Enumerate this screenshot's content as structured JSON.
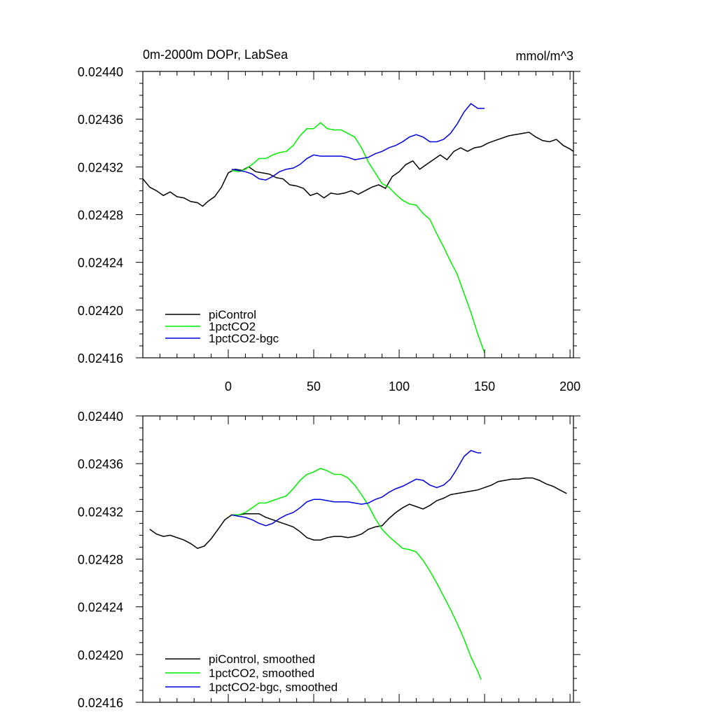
{
  "chart_data": [
    {
      "type": "line",
      "title": "0m-2000m DOPr, LabSea",
      "units": "mmol/m^3",
      "xlabel": "",
      "ylabel": "",
      "xlim": [
        -50,
        202
      ],
      "ylim": [
        0.02416,
        0.0244
      ],
      "xticks": [
        0,
        50,
        100,
        150,
        200
      ],
      "xtick_labels": [
        "0",
        "50",
        "100",
        "150",
        "200"
      ],
      "yticks": [
        0.02416,
        0.0242,
        0.02424,
        0.02428,
        0.02432,
        0.02436,
        0.0244
      ],
      "ytick_labels": [
        "0.02416",
        "0.02420",
        "0.02424",
        "0.02428",
        "0.02432",
        "0.02436",
        "0.02440"
      ],
      "grid": false,
      "legend_position": "bottom-left",
      "series": [
        {
          "name": "piControl",
          "color": "#000000",
          "x": [
            -50,
            -46,
            -42,
            -38,
            -34,
            -30,
            -26,
            -22,
            -18,
            -15,
            -12,
            -8,
            -4,
            0,
            4,
            8,
            12,
            16,
            20,
            24,
            28,
            32,
            36,
            40,
            44,
            48,
            52,
            56,
            60,
            64,
            68,
            72,
            76,
            80,
            84,
            88,
            92,
            96,
            100,
            104,
            108,
            112,
            116,
            120,
            124,
            128,
            132,
            136,
            140,
            144,
            148,
            152,
            156,
            160,
            164,
            168,
            172,
            176,
            180,
            184,
            188,
            192,
            196,
            200,
            202
          ],
          "y": [
            0.02431,
            0.024303,
            0.0243,
            0.024296,
            0.024299,
            0.024295,
            0.024294,
            0.024291,
            0.02429,
            0.024287,
            0.024291,
            0.024295,
            0.024303,
            0.024315,
            0.024318,
            0.024317,
            0.02432,
            0.024316,
            0.024315,
            0.024314,
            0.024311,
            0.02431,
            0.024305,
            0.024304,
            0.024302,
            0.024296,
            0.024298,
            0.024294,
            0.024298,
            0.024297,
            0.024298,
            0.0243,
            0.024297,
            0.0243,
            0.024303,
            0.024305,
            0.024302,
            0.024312,
            0.024316,
            0.024322,
            0.024325,
            0.024318,
            0.024322,
            0.024326,
            0.02433,
            0.024326,
            0.024333,
            0.024336,
            0.024333,
            0.024336,
            0.024337,
            0.02434,
            0.024342,
            0.024344,
            0.024346,
            0.024347,
            0.024348,
            0.024349,
            0.024345,
            0.024342,
            0.024341,
            0.024343,
            0.024338,
            0.024335,
            0.024333
          ]
        },
        {
          "name": "1pctCO2",
          "color": "#00ee00",
          "x": [
            2,
            6,
            10,
            14,
            18,
            22,
            26,
            30,
            34,
            38,
            42,
            46,
            50,
            54,
            58,
            62,
            66,
            70,
            74,
            78,
            82,
            86,
            90,
            94,
            98,
            102,
            106,
            110,
            114,
            118,
            122,
            126,
            130,
            134,
            138,
            142,
            146,
            150
          ],
          "y": [
            0.024317,
            0.024316,
            0.024318,
            0.024322,
            0.024327,
            0.024327,
            0.02433,
            0.024332,
            0.024333,
            0.024338,
            0.024346,
            0.024352,
            0.024352,
            0.024357,
            0.024352,
            0.024351,
            0.024351,
            0.024348,
            0.024345,
            0.024336,
            0.024324,
            0.024315,
            0.024306,
            0.024303,
            0.024297,
            0.024292,
            0.024289,
            0.024288,
            0.024281,
            0.024276,
            0.024264,
            0.024253,
            0.024241,
            0.02423,
            0.024214,
            0.024198,
            0.02418,
            0.024164
          ]
        },
        {
          "name": "1pctCO2-bgc",
          "color": "#0000dd",
          "x": [
            2,
            6,
            10,
            14,
            18,
            22,
            26,
            30,
            34,
            38,
            42,
            46,
            50,
            54,
            58,
            62,
            66,
            70,
            74,
            78,
            82,
            86,
            90,
            94,
            98,
            102,
            106,
            110,
            114,
            118,
            122,
            126,
            130,
            134,
            138,
            142,
            146,
            150
          ],
          "y": [
            0.024318,
            0.024317,
            0.024316,
            0.024314,
            0.02431,
            0.024309,
            0.024312,
            0.024316,
            0.024318,
            0.024319,
            0.024322,
            0.024327,
            0.02433,
            0.024329,
            0.024329,
            0.024329,
            0.024329,
            0.024328,
            0.024326,
            0.024327,
            0.024328,
            0.024331,
            0.024333,
            0.024336,
            0.024338,
            0.024341,
            0.024345,
            0.024347,
            0.024345,
            0.024341,
            0.024341,
            0.024343,
            0.024348,
            0.024356,
            0.024366,
            0.024373,
            0.024369,
            0.024369
          ]
        }
      ]
    },
    {
      "type": "line",
      "xlabel": "",
      "ylabel": "",
      "xlim": [
        -50,
        202
      ],
      "ylim": [
        0.02416,
        0.0244
      ],
      "xticks": [
        0,
        50,
        100,
        150,
        200
      ],
      "yticks": [
        0.02416,
        0.0242,
        0.02424,
        0.02428,
        0.02432,
        0.02436,
        0.0244
      ],
      "ytick_labels": [
        "0.02416",
        "0.02420",
        "0.02424",
        "0.02428",
        "0.02432",
        "0.02436",
        "0.02440"
      ],
      "grid": false,
      "legend_position": "bottom-left",
      "series": [
        {
          "name": "piControl, smoothed",
          "color": "#000000",
          "x": [
            -46,
            -42,
            -38,
            -34,
            -30,
            -26,
            -22,
            -18,
            -14,
            -10,
            -6,
            -2,
            2,
            6,
            10,
            14,
            18,
            22,
            26,
            30,
            34,
            38,
            42,
            46,
            50,
            54,
            58,
            62,
            66,
            70,
            74,
            78,
            82,
            86,
            90,
            94,
            98,
            102,
            106,
            110,
            114,
            118,
            122,
            126,
            130,
            134,
            138,
            142,
            146,
            150,
            154,
            158,
            162,
            166,
            170,
            174,
            178,
            182,
            186,
            190,
            194,
            198
          ],
          "y": [
            0.024305,
            0.024301,
            0.024299,
            0.0243,
            0.024298,
            0.024296,
            0.024293,
            0.024289,
            0.024291,
            0.024297,
            0.024305,
            0.024313,
            0.024317,
            0.024317,
            0.024318,
            0.024318,
            0.024318,
            0.024315,
            0.024313,
            0.024311,
            0.024309,
            0.024307,
            0.024303,
            0.024298,
            0.024296,
            0.024296,
            0.024298,
            0.024299,
            0.024299,
            0.024298,
            0.024299,
            0.024301,
            0.024305,
            0.024307,
            0.024308,
            0.024314,
            0.024319,
            0.024323,
            0.024326,
            0.024324,
            0.024322,
            0.024325,
            0.024329,
            0.024331,
            0.024334,
            0.024335,
            0.024336,
            0.024337,
            0.024338,
            0.02434,
            0.024342,
            0.024345,
            0.024346,
            0.024347,
            0.024347,
            0.024348,
            0.024348,
            0.024346,
            0.024343,
            0.024341,
            0.024338,
            0.024335
          ]
        },
        {
          "name": "1pctCO2, smoothed",
          "color": "#00ee00",
          "x": [
            2,
            6,
            10,
            14,
            18,
            22,
            26,
            30,
            34,
            38,
            42,
            46,
            50,
            54,
            58,
            62,
            66,
            70,
            74,
            78,
            82,
            86,
            90,
            94,
            98,
            102,
            106,
            110,
            114,
            118,
            122,
            126,
            130,
            134,
            138,
            142,
            146,
            148
          ],
          "y": [
            0.024317,
            0.024317,
            0.024319,
            0.024323,
            0.024327,
            0.024327,
            0.024329,
            0.024331,
            0.024333,
            0.024339,
            0.024346,
            0.024351,
            0.024353,
            0.024356,
            0.024354,
            0.024351,
            0.024351,
            0.024348,
            0.024342,
            0.024334,
            0.024325,
            0.024314,
            0.024305,
            0.024299,
            0.024294,
            0.024289,
            0.024288,
            0.024286,
            0.024279,
            0.02427,
            0.02426,
            0.024249,
            0.024238,
            0.024226,
            0.024213,
            0.024198,
            0.024186,
            0.024179
          ]
        },
        {
          "name": "1pctCO2-bgc, smoothed",
          "color": "#0000dd",
          "x": [
            2,
            6,
            10,
            14,
            18,
            22,
            26,
            30,
            34,
            38,
            42,
            46,
            50,
            54,
            58,
            62,
            66,
            70,
            74,
            78,
            82,
            86,
            90,
            94,
            98,
            102,
            106,
            110,
            114,
            118,
            122,
            126,
            130,
            134,
            138,
            142,
            146,
            148
          ],
          "y": [
            0.024317,
            0.024316,
            0.024315,
            0.024313,
            0.02431,
            0.024308,
            0.02431,
            0.024314,
            0.024317,
            0.024319,
            0.024323,
            0.024328,
            0.02433,
            0.02433,
            0.024329,
            0.024328,
            0.024328,
            0.024328,
            0.024327,
            0.024326,
            0.024327,
            0.02433,
            0.024332,
            0.024336,
            0.024339,
            0.024341,
            0.024344,
            0.024347,
            0.024346,
            0.024342,
            0.02434,
            0.024342,
            0.024347,
            0.024356,
            0.024366,
            0.024371,
            0.024369,
            0.024369
          ]
        }
      ]
    }
  ]
}
